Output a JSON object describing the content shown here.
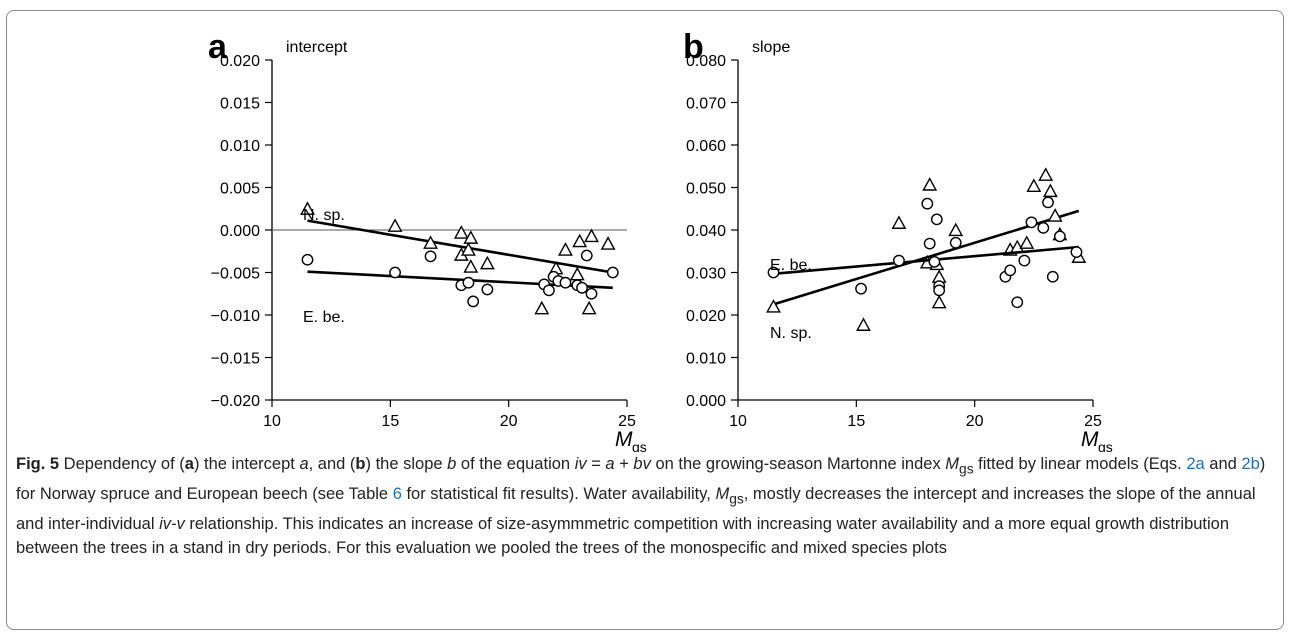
{
  "chart_data": [
    {
      "panel": "a",
      "type": "scatter",
      "ylabel": "intercept",
      "xlabel_main": "M",
      "xlabel_sub": "gs",
      "xlim": [
        10,
        25
      ],
      "ylim": [
        -0.02,
        0.02
      ],
      "xticks": [
        10,
        15,
        20,
        25
      ],
      "yticks": [
        -0.02,
        -0.015,
        -0.01,
        -0.005,
        0.0,
        0.005,
        0.01,
        0.015,
        0.02
      ],
      "ytick_labels": [
        "−0.020",
        "−0.015",
        "−0.010",
        "−0.005",
        "0.000",
        "0.005",
        "0.010",
        "0.015",
        "0.020"
      ],
      "reference_line_y": 0.0,
      "series": [
        {
          "name": "N. sp.",
          "marker": "triangle",
          "points": [
            [
              11.5,
              0.0024
            ],
            [
              15.2,
              0.0004
            ],
            [
              16.7,
              -0.0016
            ],
            [
              18.0,
              -0.0004
            ],
            [
              18.0,
              -0.003
            ],
            [
              18.3,
              -0.0024
            ],
            [
              18.4,
              -0.001
            ],
            [
              18.4,
              -0.0044
            ],
            [
              19.1,
              -0.004
            ],
            [
              21.4,
              -0.0093
            ],
            [
              22.0,
              -0.0046
            ],
            [
              22.4,
              -0.0024
            ],
            [
              22.9,
              -0.0053
            ],
            [
              23.0,
              -0.0014
            ],
            [
              23.4,
              -0.0093
            ],
            [
              23.5,
              -0.0008
            ],
            [
              24.2,
              -0.0017
            ]
          ],
          "fit": [
            [
              11.5,
              0.0011
            ],
            [
              24.4,
              -0.005
            ]
          ],
          "line_label": "N. sp."
        },
        {
          "name": "E. be.",
          "marker": "circle",
          "points": [
            [
              11.5,
              -0.0035
            ],
            [
              15.2,
              -0.005
            ],
            [
              16.7,
              -0.0031
            ],
            [
              18.0,
              -0.0065
            ],
            [
              18.3,
              -0.0062
            ],
            [
              18.5,
              -0.0084
            ],
            [
              19.1,
              -0.007
            ],
            [
              21.5,
              -0.0064
            ],
            [
              21.7,
              -0.0071
            ],
            [
              21.9,
              -0.0055
            ],
            [
              22.1,
              -0.006
            ],
            [
              22.4,
              -0.0062
            ],
            [
              22.9,
              -0.0065
            ],
            [
              23.1,
              -0.0068
            ],
            [
              23.3,
              -0.003
            ],
            [
              23.5,
              -0.0075
            ],
            [
              24.4,
              -0.005
            ]
          ],
          "fit": [
            [
              11.5,
              -0.0049
            ],
            [
              24.4,
              -0.0068
            ]
          ],
          "line_label": "E. be."
        }
      ]
    },
    {
      "panel": "b",
      "type": "scatter",
      "ylabel": "slope",
      "xlabel_main": "M",
      "xlabel_sub": "gs",
      "xlim": [
        10,
        25
      ],
      "ylim": [
        0.0,
        0.08
      ],
      "xticks": [
        10,
        15,
        20,
        25
      ],
      "yticks": [
        0.0,
        0.01,
        0.02,
        0.03,
        0.04,
        0.05,
        0.06,
        0.07,
        0.08
      ],
      "ytick_labels": [
        "0.000",
        "0.010",
        "0.020",
        "0.030",
        "0.040",
        "0.050",
        "0.060",
        "0.070",
        "0.080"
      ],
      "series": [
        {
          "name": "N. sp.",
          "marker": "triangle",
          "points": [
            [
              11.5,
              0.0218
            ],
            [
              15.3,
              0.0175
            ],
            [
              16.8,
              0.0415
            ],
            [
              18.0,
              0.0322
            ],
            [
              18.1,
              0.0505
            ],
            [
              18.4,
              0.0318
            ],
            [
              18.5,
              0.0288
            ],
            [
              18.5,
              0.0228
            ],
            [
              19.2,
              0.0398
            ],
            [
              21.5,
              0.0352
            ],
            [
              21.8,
              0.0358
            ],
            [
              22.2,
              0.0368
            ],
            [
              22.5,
              0.0502
            ],
            [
              23.0,
              0.0528
            ],
            [
              23.2,
              0.049
            ],
            [
              23.4,
              0.0432
            ],
            [
              23.6,
              0.0388
            ],
            [
              24.4,
              0.0335
            ]
          ],
          "fit": [
            [
              11.5,
              0.0225
            ],
            [
              24.4,
              0.0445
            ]
          ],
          "line_label": "N. sp."
        },
        {
          "name": "E. be.",
          "marker": "circle",
          "points": [
            [
              11.5,
              0.03
            ],
            [
              15.2,
              0.0262
            ],
            [
              16.8,
              0.0328
            ],
            [
              18.0,
              0.0462
            ],
            [
              18.1,
              0.0368
            ],
            [
              18.3,
              0.0325
            ],
            [
              18.4,
              0.0425
            ],
            [
              18.5,
              0.0268
            ],
            [
              18.5,
              0.0258
            ],
            [
              19.2,
              0.037
            ],
            [
              21.3,
              0.029
            ],
            [
              21.5,
              0.0305
            ],
            [
              21.8,
              0.023
            ],
            [
              22.1,
              0.0328
            ],
            [
              22.4,
              0.0418
            ],
            [
              22.9,
              0.0405
            ],
            [
              23.1,
              0.0465
            ],
            [
              23.3,
              0.029
            ],
            [
              23.6,
              0.0385
            ],
            [
              24.3,
              0.0348
            ]
          ],
          "fit": [
            [
              11.5,
              0.0297
            ],
            [
              24.4,
              0.036
            ]
          ],
          "line_label": "E. be."
        }
      ]
    }
  ],
  "caption": {
    "lead": "Fig. 5",
    "segments": [
      {
        "t": " Dependency of (",
        "s": "n"
      },
      {
        "t": "a",
        "s": "b"
      },
      {
        "t": ") the intercept ",
        "s": "n"
      },
      {
        "t": "a",
        "s": "i"
      },
      {
        "t": ", and (",
        "s": "n"
      },
      {
        "t": "b",
        "s": "b"
      },
      {
        "t": ") the slope ",
        "s": "n"
      },
      {
        "t": "b",
        "s": "i"
      },
      {
        "t": " of the equation ",
        "s": "n"
      },
      {
        "t": "iv",
        "s": "i"
      },
      {
        "t": " = ",
        "s": "n"
      },
      {
        "t": "a",
        "s": "i"
      },
      {
        "t": " + ",
        "s": "n"
      },
      {
        "t": "bv",
        "s": "i"
      },
      {
        "t": " on the growing-season Martonne index ",
        "s": "n"
      },
      {
        "t": "M",
        "s": "i"
      },
      {
        "t": "gs",
        "s": "sub"
      },
      {
        "t": " fitted by linear models (Eqs. ",
        "s": "n"
      },
      {
        "t": "2a",
        "s": "ref"
      },
      {
        "t": " and ",
        "s": "n"
      },
      {
        "t": "2b",
        "s": "ref"
      },
      {
        "t": ") for Norway spruce and European beech (see Table ",
        "s": "n"
      },
      {
        "t": "6",
        "s": "ref"
      },
      {
        "t": " for statistical fit results). Water availability, ",
        "s": "n"
      },
      {
        "t": "M",
        "s": "i"
      },
      {
        "t": "gs",
        "s": "sub"
      },
      {
        "t": ", mostly decreases the intercept and increases the slope of the annual and inter-individual ",
        "s": "n"
      },
      {
        "t": "iv-v",
        "s": "i"
      },
      {
        "t": " relationship. This indicates an increase of size-asymmmetric competition with increasing water availability and a more equal growth distribution between the trees in a stand in dry periods. For this evaluation we pooled the trees of the monospecific and mixed species plots",
        "s": "n"
      }
    ]
  }
}
